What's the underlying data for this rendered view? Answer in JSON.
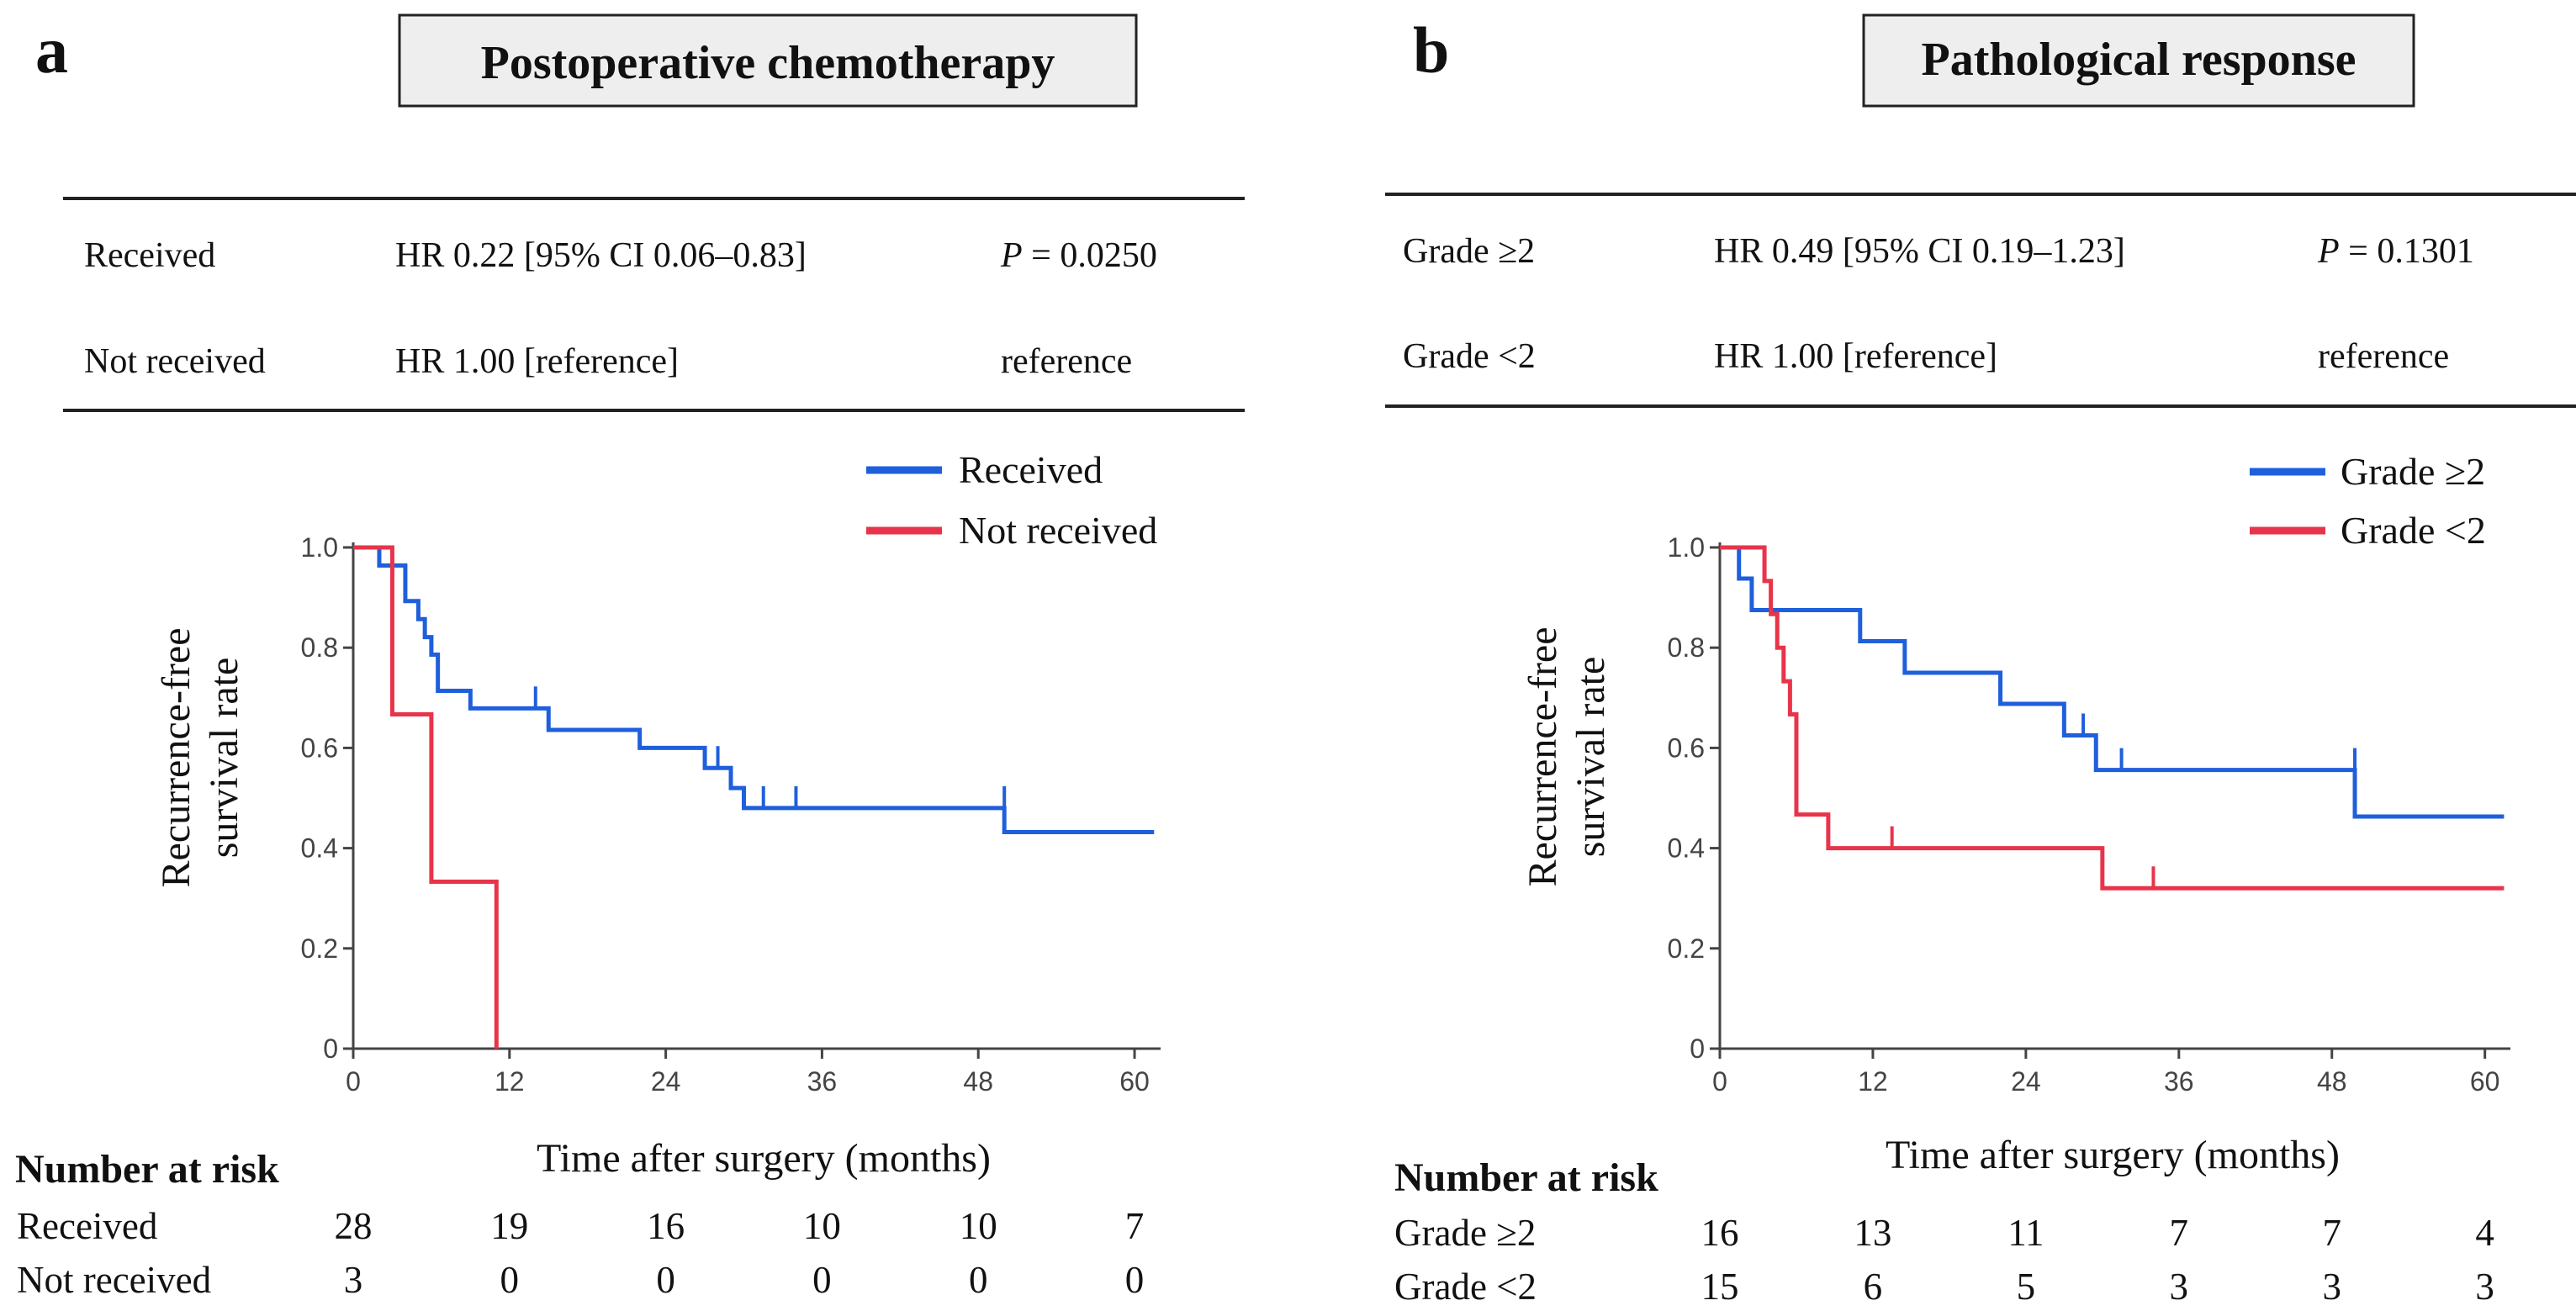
{
  "panels": [
    {
      "letter": "a",
      "title": "Postoperative chemotherapy",
      "hr_rows": [
        {
          "group": "Received",
          "hr": "HR 0.22 [95% CI 0.06–0.83]",
          "p_prefix": "P",
          "p_value": "= 0.0250"
        },
        {
          "group": "Not received",
          "hr": "HR 1.00 [reference]",
          "p_prefix": "",
          "p_value": "reference"
        }
      ],
      "risk": {
        "title": "Number at risk",
        "rows": [
          {
            "label": "Received",
            "values": [
              "28",
              "19",
              "16",
              "10",
              "10",
              "7"
            ]
          },
          {
            "label": "Not received",
            "values": [
              "3",
              "0",
              "0",
              "0",
              "0",
              "0"
            ]
          }
        ]
      }
    },
    {
      "letter": "b",
      "title": "Pathological response",
      "hr_rows": [
        {
          "group": "Grade ≥2",
          "hr": "HR 0.49 [95% CI 0.19–1.23]",
          "p_prefix": "P",
          "p_value": "= 0.1301"
        },
        {
          "group": "Grade <2",
          "hr": "HR 1.00 [reference]",
          "p_prefix": "",
          "p_value": "reference"
        }
      ],
      "risk": {
        "title": "Number at risk",
        "rows": [
          {
            "label": "Grade ≥2",
            "values": [
              "16",
              "13",
              "11",
              "7",
              "7",
              "4"
            ]
          },
          {
            "label": "Grade <2",
            "values": [
              "15",
              "6",
              "5",
              "3",
              "3",
              "3"
            ]
          }
        ]
      }
    }
  ],
  "chart_data": [
    {
      "type": "line",
      "step": true,
      "title": "Postoperative chemotherapy",
      "xlabel": "Time after surgery (months)",
      "ylabel": "Recurrence-free survival rate",
      "xlim": [
        0,
        62
      ],
      "ylim": [
        0,
        1
      ],
      "xticks": [
        0,
        12,
        24,
        36,
        48,
        60
      ],
      "yticks": [
        0,
        0.2,
        0.4,
        0.6,
        0.8,
        1.0
      ],
      "ytick_labels": [
        "0",
        "0.2",
        "0.4",
        "0.6",
        "0.8",
        "1.0"
      ],
      "series": [
        {
          "name": "Received",
          "color": "#1f5fdc",
          "x": [
            0,
            2,
            3,
            4,
            5,
            5.5,
            6,
            6.5,
            8,
            9,
            14,
            15,
            22,
            27,
            28,
            29,
            30,
            31,
            34,
            49.5,
            50,
            61.5
          ],
          "y": [
            1.0,
            0.964,
            0.964,
            0.893,
            0.857,
            0.821,
            0.786,
            0.714,
            0.714,
            0.679,
            0.679,
            0.636,
            0.6,
            0.56,
            0.56,
            0.52,
            0.48,
            0.48,
            0.48,
            0.48,
            0.432,
            0.432
          ],
          "censor_x": [
            14,
            28,
            31.5,
            34,
            50
          ],
          "censor_y": [
            0.679,
            0.56,
            0.48,
            0.48,
            0.48
          ]
        },
        {
          "name": "Not received",
          "color": "#e8344a",
          "x": [
            0,
            3,
            6,
            11,
            11
          ],
          "y": [
            1.0,
            0.667,
            0.333,
            0.0,
            0.0
          ],
          "censor_x": [],
          "censor_y": []
        }
      ]
    },
    {
      "type": "line",
      "step": true,
      "title": "Pathological response",
      "xlabel": "Time after surgery (months)",
      "ylabel": "Recurrence-free survival rate",
      "xlim": [
        0,
        62
      ],
      "ylim": [
        0,
        1
      ],
      "xticks": [
        0,
        12,
        24,
        36,
        48,
        60
      ],
      "yticks": [
        0,
        0.2,
        0.4,
        0.6,
        0.8,
        1.0
      ],
      "ytick_labels": [
        "0",
        "0.2",
        "0.4",
        "0.6",
        "0.8",
        "1.0"
      ],
      "series": [
        {
          "name": "Grade ≥2",
          "color": "#1f5fdc",
          "x": [
            0,
            1.5,
            2.5,
            11,
            14.5,
            22,
            27,
            29.5,
            49.8,
            61.5
          ],
          "y": [
            1.0,
            0.938,
            0.875,
            0.813,
            0.75,
            0.688,
            0.625,
            0.556,
            0.463,
            0.463
          ],
          "censor_x": [
            28.5,
            31.5,
            49.8
          ],
          "censor_y": [
            0.625,
            0.556,
            0.556
          ]
        },
        {
          "name": "Grade <2",
          "color": "#e8344a",
          "x": [
            0,
            3.5,
            4,
            4.5,
            5,
            5.5,
            6,
            8.5,
            30,
            61.5
          ],
          "y": [
            1.0,
            0.933,
            0.867,
            0.8,
            0.733,
            0.667,
            0.467,
            0.4,
            0.32,
            0.32
          ],
          "censor_x": [
            13.5,
            34
          ],
          "censor_y": [
            0.4,
            0.32
          ]
        }
      ]
    }
  ]
}
